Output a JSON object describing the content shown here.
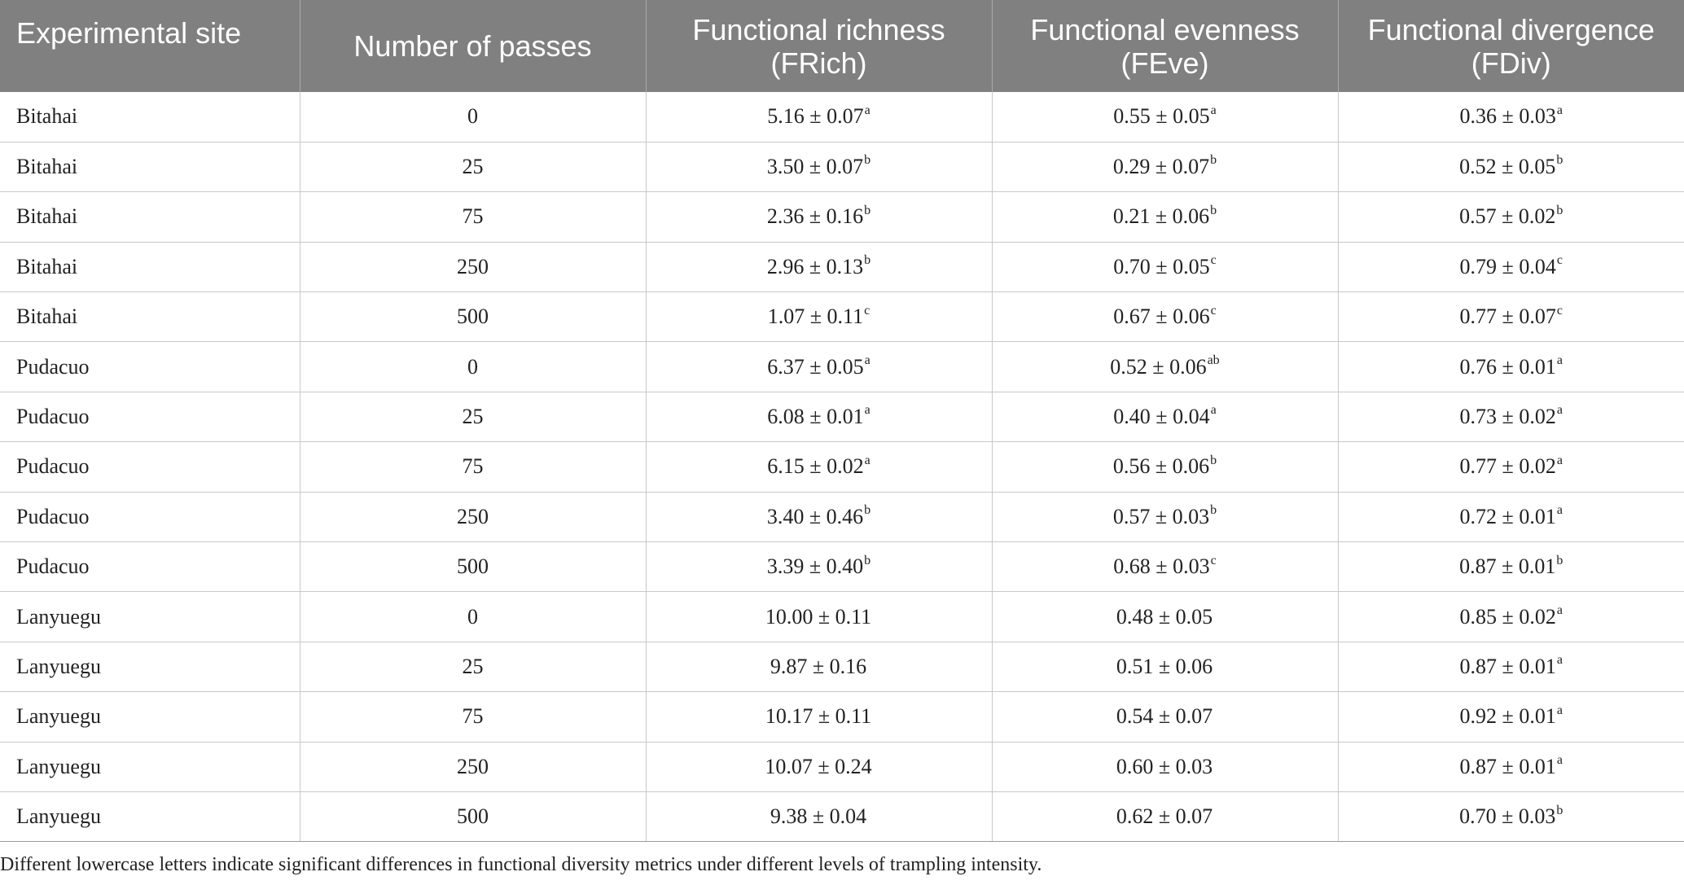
{
  "table": {
    "headers": [
      {
        "line1": "Experimental site",
        "line2": ""
      },
      {
        "line1": "Number of passes",
        "line2": ""
      },
      {
        "line1": "Functional richness",
        "line2": "(FRich)"
      },
      {
        "line1": "Functional evenness",
        "line2": "(FEve)"
      },
      {
        "line1": "Functional divergence",
        "line2": "(FDiv)"
      }
    ],
    "rows": [
      {
        "site": "Bitahai",
        "passes": "0",
        "frich": "5.16 ± 0.07",
        "frich_sup": "a",
        "feve": "0.55 ± 0.05",
        "feve_sup": "a",
        "fdiv": "0.36 ± 0.03",
        "fdiv_sup": "a"
      },
      {
        "site": "Bitahai",
        "passes": "25",
        "frich": "3.50 ± 0.07",
        "frich_sup": "b",
        "feve": "0.29 ± 0.07",
        "feve_sup": "b",
        "fdiv": "0.52 ± 0.05",
        "fdiv_sup": "b"
      },
      {
        "site": "Bitahai",
        "passes": "75",
        "frich": "2.36 ± 0.16",
        "frich_sup": "b",
        "feve": "0.21 ± 0.06",
        "feve_sup": "b",
        "fdiv": "0.57 ± 0.02",
        "fdiv_sup": "b"
      },
      {
        "site": "Bitahai",
        "passes": "250",
        "frich": "2.96 ± 0.13",
        "frich_sup": "b",
        "feve": "0.70 ± 0.05",
        "feve_sup": "c",
        "fdiv": "0.79 ± 0.04",
        "fdiv_sup": "c"
      },
      {
        "site": "Bitahai",
        "passes": "500",
        "frich": "1.07 ± 0.11",
        "frich_sup": "c",
        "feve": "0.67 ± 0.06",
        "feve_sup": "c",
        "fdiv": "0.77 ± 0.07",
        "fdiv_sup": "c"
      },
      {
        "site": "Pudacuo",
        "passes": "0",
        "frich": "6.37 ± 0.05",
        "frich_sup": "a",
        "feve": "0.52 ± 0.06",
        "feve_sup": "ab",
        "fdiv": "0.76 ± 0.01",
        "fdiv_sup": "a"
      },
      {
        "site": "Pudacuo",
        "passes": "25",
        "frich": "6.08 ± 0.01",
        "frich_sup": "a",
        "feve": "0.40 ± 0.04",
        "feve_sup": "a",
        "fdiv": "0.73 ± 0.02",
        "fdiv_sup": "a"
      },
      {
        "site": "Pudacuo",
        "passes": "75",
        "frich": "6.15 ± 0.02",
        "frich_sup": "a",
        "feve": "0.56 ± 0.06",
        "feve_sup": "b",
        "fdiv": "0.77 ± 0.02",
        "fdiv_sup": "a"
      },
      {
        "site": "Pudacuo",
        "passes": "250",
        "frich": "3.40 ± 0.46",
        "frich_sup": "b",
        "feve": "0.57 ± 0.03",
        "feve_sup": "b",
        "fdiv": "0.72 ± 0.01",
        "fdiv_sup": "a"
      },
      {
        "site": "Pudacuo",
        "passes": "500",
        "frich": "3.39 ± 0.40",
        "frich_sup": "b",
        "feve": "0.68 ± 0.03",
        "feve_sup": "c",
        "fdiv": "0.87 ± 0.01",
        "fdiv_sup": "b"
      },
      {
        "site": "Lanyuegu",
        "passes": "0",
        "frich": "10.00 ± 0.11",
        "frich_sup": "",
        "feve": "0.48 ± 0.05",
        "feve_sup": "",
        "fdiv": "0.85 ± 0.02",
        "fdiv_sup": "a"
      },
      {
        "site": "Lanyuegu",
        "passes": "25",
        "frich": "9.87 ± 0.16",
        "frich_sup": "",
        "feve": "0.51 ± 0.06",
        "feve_sup": "",
        "fdiv": "0.87 ± 0.01",
        "fdiv_sup": "a"
      },
      {
        "site": "Lanyuegu",
        "passes": "75",
        "frich": "10.17 ± 0.11",
        "frich_sup": "",
        "feve": "0.54 ± 0.07",
        "feve_sup": "",
        "fdiv": "0.92 ± 0.01",
        "fdiv_sup": "a"
      },
      {
        "site": "Lanyuegu",
        "passes": "250",
        "frich": "10.07 ± 0.24",
        "frich_sup": "",
        "feve": "0.60 ± 0.03",
        "feve_sup": "",
        "fdiv": "0.87 ± 0.01",
        "fdiv_sup": "a"
      },
      {
        "site": "Lanyuegu",
        "passes": "500",
        "frich": "9.38 ± 0.04",
        "frich_sup": "",
        "feve": "0.62 ± 0.07",
        "feve_sup": "",
        "fdiv": "0.70 ± 0.03",
        "fdiv_sup": "b"
      }
    ]
  },
  "footnote": "Different lowercase letters indicate significant differences in functional diversity metrics under different levels of trampling intensity.",
  "colors": {
    "header_bg": "#808080",
    "header_text": "#ffffff",
    "grid_line": "#c8c8c8",
    "body_text": "#222222"
  }
}
